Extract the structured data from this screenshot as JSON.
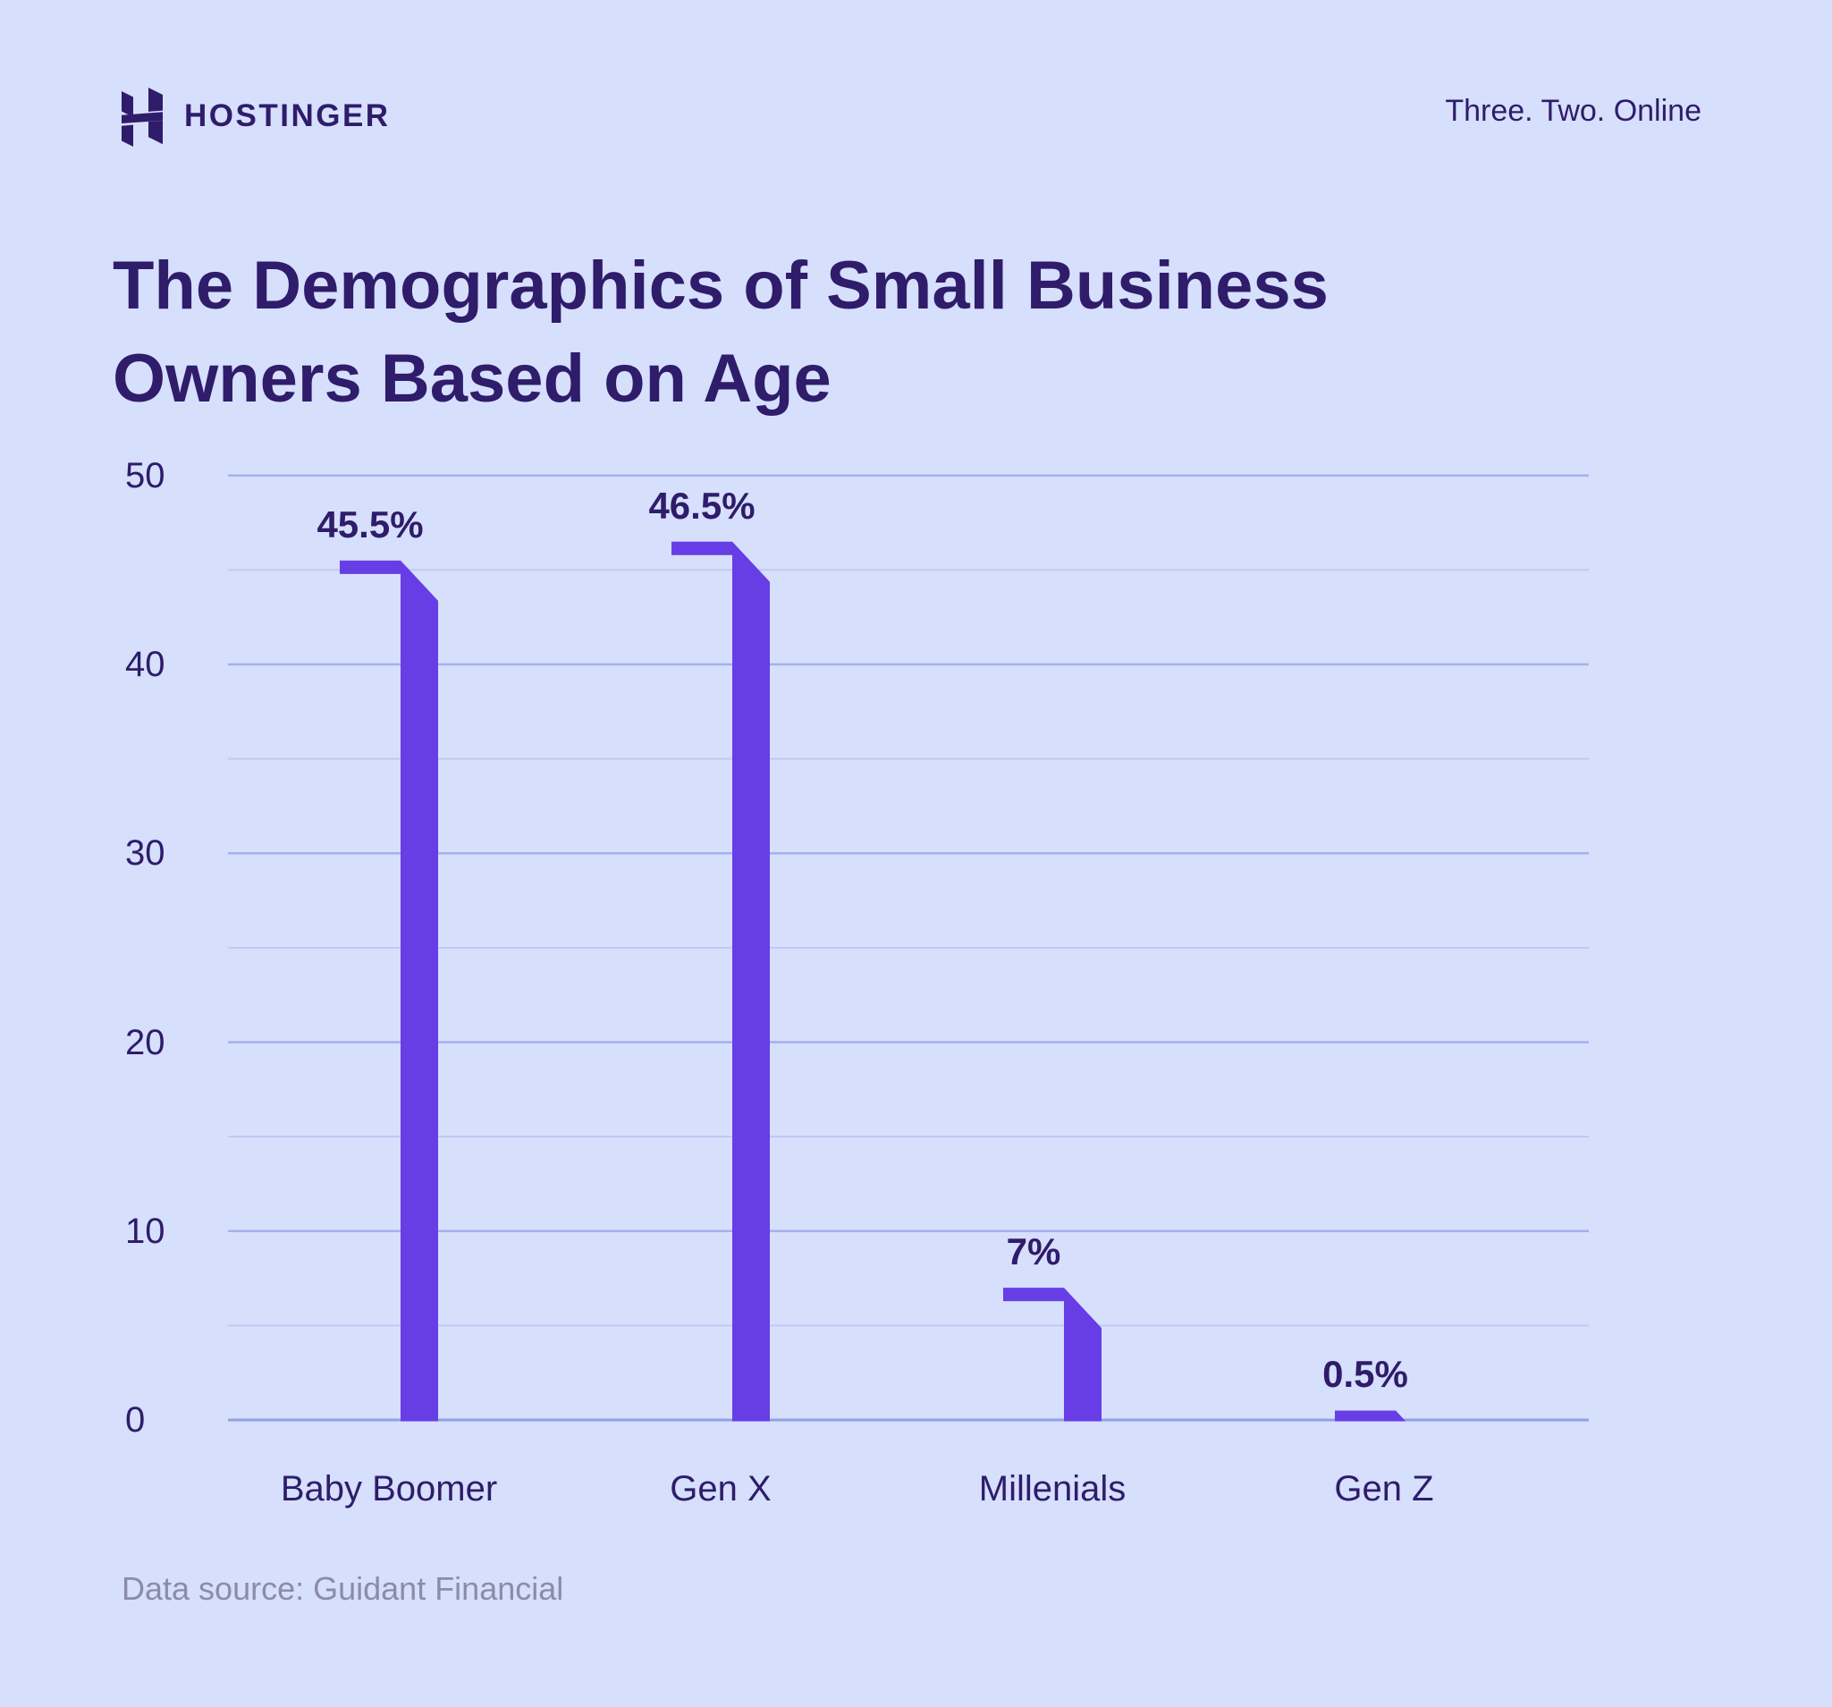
{
  "header": {
    "brand": "HOSTINGER",
    "tagline": "Three. Two. Online"
  },
  "title": {
    "line1": "The Demographics of Small Business",
    "line2": "Owners Based on Age"
  },
  "source": "Data source: Guidant Financial",
  "colors": {
    "background": "#D6DFFC",
    "bar": "#673DE6",
    "text_dark": "#2F1C6A",
    "grid_minor": "#BCC7F4",
    "grid_major": "#A4B1EC",
    "axis_line": "#93A0E2",
    "source_text": "#8A8CA8"
  },
  "chart_data": {
    "type": "bar",
    "categories": [
      "Baby Boomer",
      "Gen X",
      "Millenials",
      "Gen Z"
    ],
    "values": [
      45.5,
      46.5,
      7,
      0.5
    ],
    "value_labels": [
      "45.5%",
      "46.5%",
      "7%",
      "0.5%"
    ],
    "title": "The Demographics of Small Business Owners Based on Age",
    "xlabel": "",
    "ylabel": "",
    "ylim": [
      0,
      50
    ],
    "yticks": [
      0,
      10,
      20,
      30,
      40,
      50
    ],
    "minor_grid_step": 5,
    "grid": true,
    "legend": false
  }
}
